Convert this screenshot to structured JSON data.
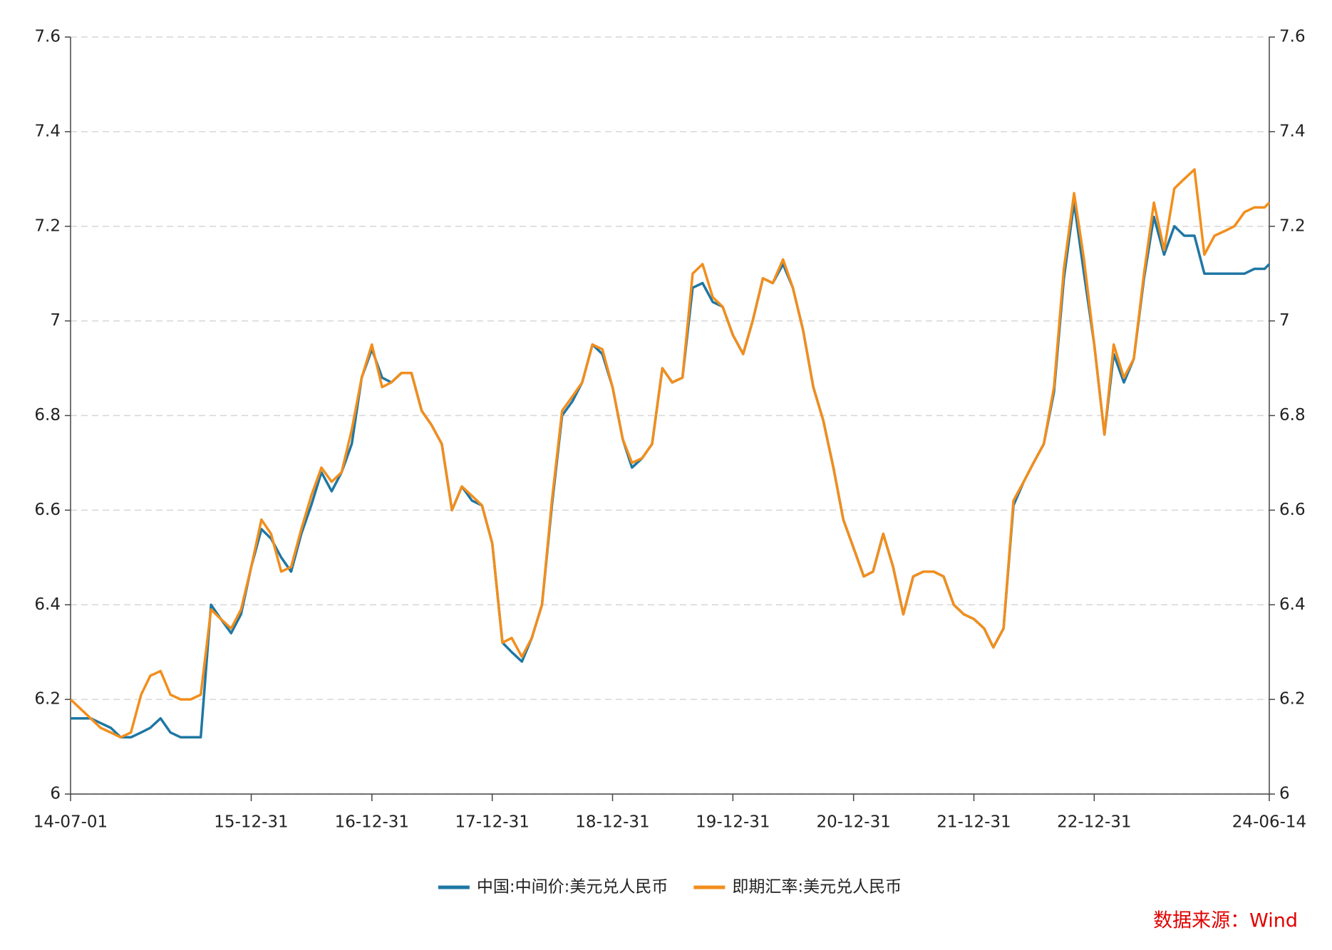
{
  "chart_data": {
    "type": "line",
    "source": "数据来源：Wind",
    "x": [
      "14-07-01",
      "14-08-31",
      "14-09-30",
      "14-10-31",
      "14-11-30",
      "14-12-31",
      "15-01-31",
      "15-02-28",
      "15-03-31",
      "15-04-30",
      "15-05-31",
      "15-06-30",
      "15-07-31",
      "15-08-31",
      "15-09-30",
      "15-10-31",
      "15-11-30",
      "15-12-31",
      "16-01-31",
      "16-02-29",
      "16-03-31",
      "16-04-30",
      "16-05-31",
      "16-06-30",
      "16-07-31",
      "16-08-31",
      "16-09-30",
      "16-10-31",
      "16-11-30",
      "16-12-31",
      "17-01-31",
      "17-02-28",
      "17-03-31",
      "17-04-30",
      "17-05-31",
      "17-06-30",
      "17-07-31",
      "17-08-31",
      "17-09-30",
      "17-10-31",
      "17-11-30",
      "17-12-31",
      "18-01-31",
      "18-02-28",
      "18-03-31",
      "18-04-30",
      "18-05-31",
      "18-06-30",
      "18-07-31",
      "18-08-31",
      "18-09-30",
      "18-10-31",
      "18-11-30",
      "18-12-31",
      "19-01-31",
      "19-02-28",
      "19-03-31",
      "19-04-30",
      "19-05-31",
      "19-06-30",
      "19-07-31",
      "19-08-31",
      "19-09-30",
      "19-10-31",
      "19-11-30",
      "19-12-31",
      "20-01-31",
      "20-02-29",
      "20-03-31",
      "20-04-30",
      "20-05-31",
      "20-06-30",
      "20-07-31",
      "20-08-31",
      "20-09-30",
      "20-10-31",
      "20-11-30",
      "20-12-31",
      "21-01-31",
      "21-02-28",
      "21-03-31",
      "21-04-30",
      "21-05-31",
      "21-06-30",
      "21-07-31",
      "21-08-31",
      "21-09-30",
      "21-10-31",
      "21-11-30",
      "21-12-31",
      "22-01-31",
      "22-02-28",
      "22-03-31",
      "22-04-30",
      "22-05-31",
      "22-06-30",
      "22-07-31",
      "22-08-31",
      "22-09-30",
      "22-10-31",
      "22-11-30",
      "22-12-31",
      "23-01-31",
      "23-02-28",
      "23-03-31",
      "23-04-30",
      "23-05-31",
      "23-06-30",
      "23-07-31",
      "23-08-31",
      "23-09-30",
      "23-10-31",
      "23-11-30",
      "23-12-31",
      "24-01-31",
      "24-02-29",
      "24-03-31",
      "24-04-30",
      "24-05-31",
      "24-06-14"
    ],
    "series": [
      {
        "name": "中国:中间价:美元兑人民币",
        "color": "#1f77a4",
        "values": [
          6.16,
          6.16,
          6.15,
          6.14,
          6.12,
          6.12,
          6.13,
          6.14,
          6.16,
          6.13,
          6.12,
          6.12,
          6.12,
          6.4,
          6.37,
          6.34,
          6.38,
          6.48,
          6.56,
          6.54,
          6.5,
          6.47,
          6.55,
          6.61,
          6.68,
          6.64,
          6.68,
          6.74,
          6.88,
          6.94,
          6.88,
          6.87,
          6.89,
          6.89,
          6.81,
          6.78,
          6.74,
          6.6,
          6.65,
          6.62,
          6.61,
          6.53,
          6.32,
          6.3,
          6.28,
          6.33,
          6.4,
          6.61,
          6.8,
          6.83,
          6.87,
          6.95,
          6.93,
          6.86,
          6.75,
          6.69,
          6.71,
          6.74,
          6.9,
          6.87,
          6.88,
          7.07,
          7.08,
          7.04,
          7.03,
          6.97,
          6.93,
          7.0,
          7.09,
          7.08,
          7.12,
          7.07,
          6.98,
          6.86,
          6.79,
          6.69,
          6.58,
          6.52,
          6.46,
          6.47,
          6.55,
          6.48,
          6.38,
          6.46,
          6.47,
          6.47,
          6.46,
          6.4,
          6.38,
          6.37,
          6.35,
          6.31,
          6.35,
          6.61,
          6.66,
          6.7,
          6.74,
          6.85,
          7.09,
          7.25,
          7.1,
          6.95,
          6.76,
          6.93,
          6.87,
          6.92,
          7.09,
          7.22,
          7.14,
          7.2,
          7.18,
          7.18,
          7.1,
          7.1,
          7.1,
          7.1,
          7.1,
          7.11,
          7.11,
          7.12
        ]
      },
      {
        "name": "即期汇率:美元兑人民币",
        "color": "#f28e1c",
        "values": [
          6.2,
          6.16,
          6.14,
          6.13,
          6.12,
          6.13,
          6.21,
          6.25,
          6.26,
          6.21,
          6.2,
          6.2,
          6.21,
          6.39,
          6.37,
          6.35,
          6.39,
          6.48,
          6.58,
          6.55,
          6.47,
          6.48,
          6.56,
          6.63,
          6.69,
          6.66,
          6.68,
          6.77,
          6.88,
          6.95,
          6.86,
          6.87,
          6.89,
          6.89,
          6.81,
          6.78,
          6.74,
          6.6,
          6.65,
          6.63,
          6.61,
          6.53,
          6.32,
          6.33,
          6.29,
          6.33,
          6.4,
          6.62,
          6.81,
          6.84,
          6.87,
          6.95,
          6.94,
          6.86,
          6.75,
          6.7,
          6.71,
          6.74,
          6.9,
          6.87,
          6.88,
          7.1,
          7.12,
          7.05,
          7.03,
          6.97,
          6.93,
          7.0,
          7.09,
          7.08,
          7.13,
          7.07,
          6.98,
          6.86,
          6.79,
          6.69,
          6.58,
          6.52,
          6.46,
          6.47,
          6.55,
          6.48,
          6.38,
          6.46,
          6.47,
          6.47,
          6.46,
          6.4,
          6.38,
          6.37,
          6.35,
          6.31,
          6.35,
          6.62,
          6.66,
          6.7,
          6.74,
          6.86,
          7.11,
          7.27,
          7.13,
          6.95,
          6.76,
          6.95,
          6.88,
          6.92,
          7.1,
          7.25,
          7.15,
          7.28,
          7.3,
          7.32,
          7.14,
          7.18,
          7.19,
          7.2,
          7.23,
          7.24,
          7.24,
          7.25
        ]
      }
    ],
    "xlim": [
      "14-07-01",
      "24-06-14"
    ],
    "xticks": [
      "14-07-01",
      "15-12-31",
      "16-12-31",
      "17-12-31",
      "18-12-31",
      "19-12-31",
      "20-12-31",
      "21-12-31",
      "22-12-31",
      "24-06-14"
    ],
    "ylim": [
      6,
      7.6
    ],
    "yticks": [
      6,
      6.2,
      6.4,
      6.6,
      6.8,
      7,
      7.2,
      7.4,
      7.6
    ],
    "y2lim": [
      6,
      7.6
    ],
    "y2ticks": [
      6,
      6.2,
      6.4,
      6.6,
      6.8,
      7,
      7.2,
      7.4,
      7.6
    ],
    "grid": true,
    "legend": "bottom"
  }
}
